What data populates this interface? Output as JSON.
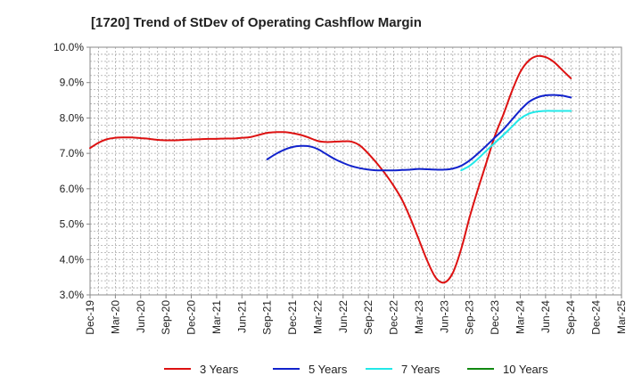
{
  "chart_data": {
    "type": "line",
    "title": "[1720]  Trend of StDev of Operating Cashflow Margin",
    "xlabel": "",
    "ylabel": "",
    "ylim": [
      3.0,
      10.0
    ],
    "y_ticks": [
      "3.0%",
      "4.0%",
      "5.0%",
      "6.0%",
      "7.0%",
      "8.0%",
      "9.0%",
      "10.0%"
    ],
    "y_tick_values": [
      3,
      4,
      5,
      6,
      7,
      8,
      9,
      10
    ],
    "x_tick_labels": [
      "Dec-19",
      "Mar-20",
      "Jun-20",
      "Sep-20",
      "Dec-20",
      "Mar-21",
      "Jun-21",
      "Sep-21",
      "Dec-21",
      "Mar-22",
      "Jun-22",
      "Sep-22",
      "Dec-22",
      "Mar-23",
      "Jun-23",
      "Sep-23",
      "Dec-23",
      "Mar-24",
      "Jun-24",
      "Sep-24",
      "Dec-24",
      "Mar-25"
    ],
    "grid": true,
    "legend_position": "bottom",
    "series": [
      {
        "name": "3 Years",
        "color": "#dd1111",
        "x": [
          "Dec-19",
          "Jan-20",
          "Feb-20",
          "Mar-20",
          "Apr-20",
          "May-20",
          "Jun-20",
          "Jul-20",
          "Aug-20",
          "Sep-20",
          "Oct-20",
          "Nov-20",
          "Dec-20",
          "Jan-21",
          "Feb-21",
          "Mar-21",
          "Apr-21",
          "May-21",
          "Jun-21",
          "Jul-21",
          "Aug-21",
          "Sep-21",
          "Oct-21",
          "Nov-21",
          "Dec-21",
          "Jan-22",
          "Feb-22",
          "Mar-22",
          "Apr-22",
          "May-22",
          "Jun-22",
          "Jul-22",
          "Aug-22",
          "Sep-22",
          "Oct-22",
          "Nov-22",
          "Dec-22",
          "Jan-23",
          "Feb-23",
          "Mar-23",
          "Apr-23",
          "May-23",
          "Jun-23",
          "Jul-23",
          "Aug-23",
          "Sep-23",
          "Oct-23",
          "Nov-23",
          "Dec-23",
          "Jan-24",
          "Feb-24",
          "Mar-24",
          "Apr-24",
          "May-24",
          "Jun-24",
          "Jul-24",
          "Aug-24",
          "Sep-24"
        ],
        "values": [
          7.15,
          7.3,
          7.4,
          7.44,
          7.45,
          7.45,
          7.43,
          7.41,
          7.38,
          7.37,
          7.37,
          7.38,
          7.39,
          7.4,
          7.41,
          7.41,
          7.42,
          7.42,
          7.44,
          7.46,
          7.52,
          7.58,
          7.6,
          7.6,
          7.57,
          7.52,
          7.44,
          7.35,
          7.32,
          7.33,
          7.34,
          7.33,
          7.22,
          6.99,
          6.72,
          6.42,
          6.08,
          5.68,
          5.15,
          4.55,
          3.95,
          3.48,
          3.35,
          3.62,
          4.3,
          5.2,
          6.0,
          6.75,
          7.5,
          8.1,
          8.75,
          9.3,
          9.62,
          9.75,
          9.72,
          9.58,
          9.35,
          9.12
        ]
      },
      {
        "name": "5 Years",
        "color": "#1122cc",
        "x": [
          "Sep-21",
          "Oct-21",
          "Nov-21",
          "Dec-21",
          "Jan-22",
          "Feb-22",
          "Mar-22",
          "Apr-22",
          "May-22",
          "Jun-22",
          "Jul-22",
          "Aug-22",
          "Sep-22",
          "Oct-22",
          "Nov-22",
          "Dec-22",
          "Jan-23",
          "Feb-23",
          "Mar-23",
          "Apr-23",
          "May-23",
          "Jun-23",
          "Jul-23",
          "Aug-23",
          "Sep-23",
          "Oct-23",
          "Nov-23",
          "Dec-23",
          "Jan-24",
          "Feb-24",
          "Mar-24",
          "Apr-24",
          "May-24",
          "Jun-24",
          "Jul-24",
          "Aug-24",
          "Sep-24"
        ],
        "values": [
          6.83,
          6.98,
          7.1,
          7.18,
          7.21,
          7.2,
          7.12,
          6.98,
          6.84,
          6.73,
          6.64,
          6.58,
          6.54,
          6.52,
          6.52,
          6.52,
          6.53,
          6.54,
          6.56,
          6.55,
          6.54,
          6.54,
          6.57,
          6.65,
          6.8,
          7.0,
          7.22,
          7.45,
          7.68,
          7.95,
          8.22,
          8.45,
          8.58,
          8.64,
          8.65,
          8.63,
          8.58
        ]
      },
      {
        "name": "7 Years",
        "color": "#22e8e8",
        "x": [
          "Aug-23",
          "Sep-23",
          "Oct-23",
          "Nov-23",
          "Dec-23",
          "Jan-24",
          "Feb-24",
          "Mar-24",
          "Apr-24",
          "May-24",
          "Jun-24",
          "Jul-24",
          "Aug-24",
          "Sep-24"
        ],
        "values": [
          6.52,
          6.65,
          6.85,
          7.08,
          7.3,
          7.52,
          7.75,
          7.98,
          8.12,
          8.18,
          8.2,
          8.2,
          8.2,
          8.2
        ]
      },
      {
        "name": "10 Years",
        "color": "#118811",
        "x": [],
        "values": []
      }
    ]
  }
}
